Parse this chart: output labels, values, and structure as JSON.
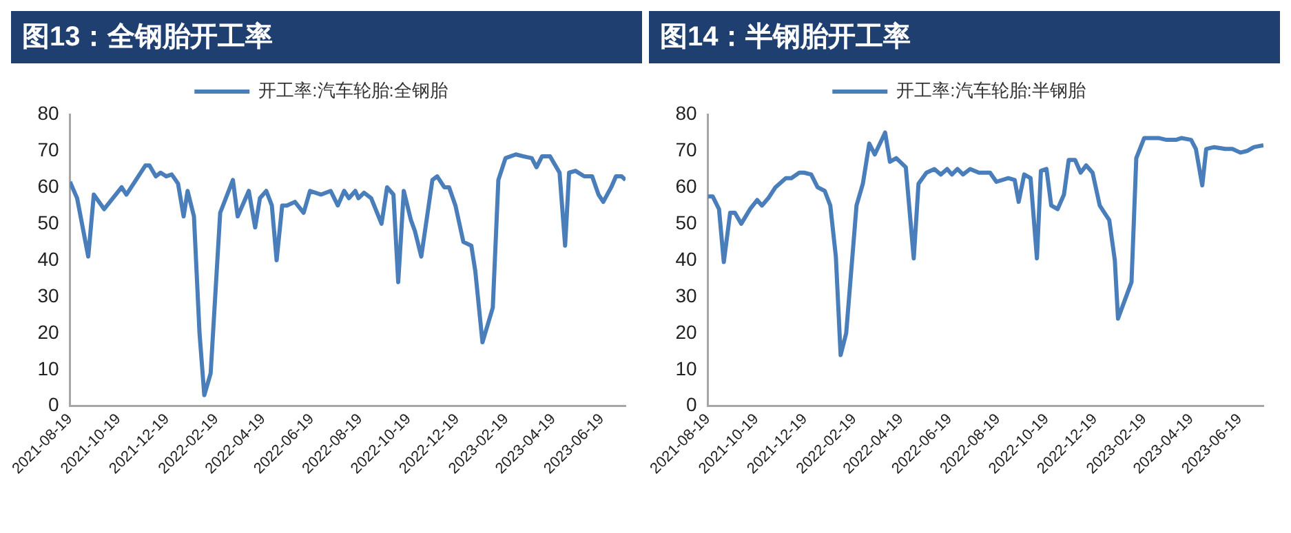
{
  "chart_data": [
    {
      "type": "line",
      "title": "图13：全钢胎开工率",
      "xlim": [
        "2021-08-19",
        "2023-07-19"
      ],
      "ylim": [
        0,
        80
      ],
      "yticks": [
        0,
        10,
        20,
        30,
        40,
        50,
        60,
        70,
        80
      ],
      "xticks": [
        "2021-08-19",
        "2021-10-19",
        "2021-12-19",
        "2022-02-19",
        "2022-04-19",
        "2022-06-19",
        "2022-08-19",
        "2022-10-19",
        "2022-12-19",
        "2023-02-19",
        "2023-04-19",
        "2023-06-19"
      ],
      "grid": false,
      "legend": "top",
      "marker": "none",
      "line_style": "solid",
      "series": [
        {
          "name": "开工率:汽车轮胎:全钢胎",
          "color": "#4a7ebb",
          "x": [
            "2021-08-19",
            "2021-08-28",
            "2021-09-11",
            "2021-09-18",
            "2021-10-01",
            "2021-10-23",
            "2021-10-29",
            "2021-11-10",
            "2021-11-22",
            "2021-11-27",
            "2021-12-05",
            "2021-12-11",
            "2021-12-18",
            "2021-12-25",
            "2022-01-02",
            "2022-01-09",
            "2022-01-14",
            "2022-01-22",
            "2022-01-29",
            "2022-02-04",
            "2022-02-12",
            "2022-02-24",
            "2022-03-12",
            "2022-03-18",
            "2022-04-01",
            "2022-04-09",
            "2022-04-15",
            "2022-04-23",
            "2022-04-30",
            "2022-05-06",
            "2022-05-13",
            "2022-05-19",
            "2022-05-29",
            "2022-06-09",
            "2022-06-17",
            "2022-07-01",
            "2022-07-13",
            "2022-07-22",
            "2022-07-30",
            "2022-08-05",
            "2022-08-13",
            "2022-08-17",
            "2022-08-24",
            "2022-09-02",
            "2022-09-15",
            "2022-09-22",
            "2022-09-30",
            "2022-10-06",
            "2022-10-13",
            "2022-10-22",
            "2022-10-27",
            "2022-11-04",
            "2022-11-18",
            "2022-11-24",
            "2022-12-03",
            "2022-12-09",
            "2022-12-17",
            "2022-12-27",
            "2023-01-06",
            "2023-01-11",
            "2023-01-20",
            "2023-02-02",
            "2023-02-09",
            "2023-02-18",
            "2023-03-03",
            "2023-03-12",
            "2023-03-23",
            "2023-03-29",
            "2023-04-05",
            "2023-04-15",
            "2023-04-27",
            "2023-05-04",
            "2023-05-09",
            "2023-05-17",
            "2023-05-28",
            "2023-06-07",
            "2023-06-15",
            "2023-06-21",
            "2023-07-01",
            "2023-07-07",
            "2023-07-14",
            "2023-07-19"
          ],
          "values": [
            61.5,
            57,
            41,
            58,
            54,
            60,
            58,
            62,
            66,
            66,
            63,
            64,
            63,
            63.5,
            61,
            52,
            59,
            52,
            20,
            3,
            9,
            53,
            62,
            52,
            59,
            49,
            57,
            59,
            55,
            40,
            55,
            55,
            56,
            53,
            59,
            58,
            59,
            55,
            59,
            57,
            59,
            57,
            58.5,
            57,
            50,
            60,
            58,
            34,
            59,
            51,
            48,
            41,
            62,
            63,
            60,
            60,
            55,
            45,
            44,
            37,
            17.5,
            27,
            62,
            68,
            69,
            68.5,
            68,
            65.5,
            68.5,
            68.5,
            64,
            44,
            64,
            64.5,
            63,
            63,
            58,
            56,
            60,
            63,
            63,
            62
          ]
        }
      ]
    },
    {
      "type": "line",
      "title": "图14：半钢胎开工率",
      "xlim": [
        "2021-08-19",
        "2023-07-19"
      ],
      "ylim": [
        0,
        80
      ],
      "yticks": [
        0,
        10,
        20,
        30,
        40,
        50,
        60,
        70,
        80
      ],
      "xticks": [
        "2021-08-19",
        "2021-10-19",
        "2021-12-19",
        "2022-02-19",
        "2022-04-19",
        "2022-06-19",
        "2022-08-19",
        "2022-10-19",
        "2022-12-19",
        "2023-02-19",
        "2023-04-19",
        "2023-06-19"
      ],
      "grid": false,
      "legend": "top",
      "marker": "none",
      "line_style": "solid",
      "series": [
        {
          "name": "开工率:汽车轮胎:半钢胎",
          "color": "#4a7ebb",
          "x": [
            "2021-08-19",
            "2021-08-25",
            "2021-09-02",
            "2021-09-08",
            "2021-09-16",
            "2021-09-22",
            "2021-09-30",
            "2021-10-11",
            "2021-10-20",
            "2021-10-26",
            "2021-11-03",
            "2021-11-12",
            "2021-11-25",
            "2021-12-02",
            "2021-12-12",
            "2021-12-18",
            "2021-12-27",
            "2022-01-04",
            "2022-01-13",
            "2022-01-20",
            "2022-01-27",
            "2022-02-02",
            "2022-02-09",
            "2022-02-22",
            "2022-03-02",
            "2022-03-10",
            "2022-03-17",
            "2022-03-30",
            "2022-04-05",
            "2022-04-13",
            "2022-04-25",
            "2022-05-05",
            "2022-05-11",
            "2022-05-21",
            "2022-05-31",
            "2022-06-08",
            "2022-06-16",
            "2022-06-22",
            "2022-06-29",
            "2022-07-06",
            "2022-07-15",
            "2022-07-26",
            "2022-08-09",
            "2022-08-17",
            "2022-09-01",
            "2022-09-09",
            "2022-09-14",
            "2022-09-21",
            "2022-09-29",
            "2022-10-07",
            "2022-10-12",
            "2022-10-19",
            "2022-10-25",
            "2022-11-02",
            "2022-11-10",
            "2022-11-16",
            "2022-11-24",
            "2022-12-01",
            "2022-12-08",
            "2022-12-16",
            "2022-12-25",
            "2022-12-31",
            "2023-01-06",
            "2023-01-13",
            "2023-01-17",
            "2023-02-03",
            "2023-02-09",
            "2023-02-19",
            "2023-03-09",
            "2023-03-19",
            "2023-03-31",
            "2023-04-07",
            "2023-04-19",
            "2023-04-25",
            "2023-05-03",
            "2023-05-08",
            "2023-05-18",
            "2023-06-01",
            "2023-06-10",
            "2023-06-20",
            "2023-06-29",
            "2023-07-07",
            "2023-07-19"
          ],
          "values": [
            57.5,
            57.5,
            54,
            39.5,
            53,
            53,
            50,
            54,
            56.5,
            55,
            57,
            60,
            62.5,
            62.5,
            64,
            64,
            63.5,
            60,
            59,
            55,
            41,
            14,
            20,
            55,
            61,
            72,
            69,
            75,
            67,
            68,
            65.5,
            40.5,
            61,
            64,
            65,
            63.5,
            65,
            63.5,
            65,
            63.5,
            65,
            64,
            64,
            61.5,
            62.5,
            62,
            56,
            63.5,
            62.5,
            40.5,
            64.5,
            65,
            55,
            54,
            58,
            67.5,
            67.5,
            64,
            66,
            64,
            55,
            53,
            51,
            40,
            24,
            34,
            68,
            73.5,
            73.5,
            73,
            73,
            73.5,
            73,
            70.5,
            60.5,
            70.5,
            71,
            70.5,
            70.5,
            69.5,
            70,
            71,
            71.5
          ]
        }
      ]
    }
  ]
}
